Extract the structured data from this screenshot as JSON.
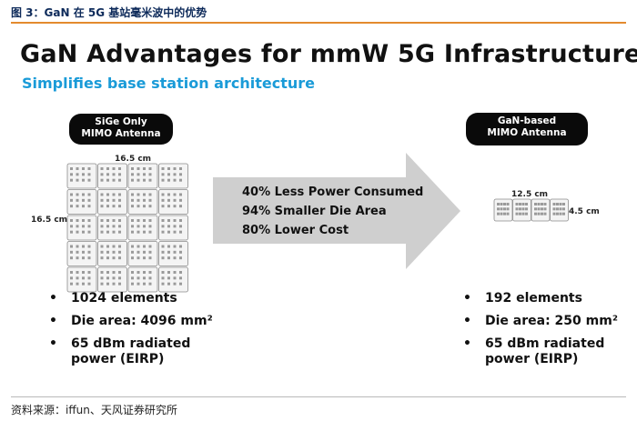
{
  "caption": "图 3：GaN 在 5G 基站毫米波中的优势",
  "title": "GaN Advantages for mmW 5G Infrastructure",
  "subtitle": "Simplifies base station architecture",
  "left": {
    "label_line1": "SiGe Only",
    "label_line2": "MIMO Antenna",
    "width_dim": "16.5 cm",
    "height_dim": "16.5 cm",
    "bullets": [
      "1024 elements",
      "Die area: 4096 mm²",
      "65 dBm radiated power (EIRP)"
    ],
    "bullet_line1": "65 dBm radiated",
    "bullet_line2": "power (EIRP)"
  },
  "arrow": {
    "lines": [
      "40% Less Power Consumed",
      "94% Smaller Die Area",
      "80% Lower Cost"
    ]
  },
  "right": {
    "label_line1": "GaN-based",
    "label_line2": "MIMO Antenna",
    "width_dim": "12.5 cm",
    "height_dim": "4.5 cm",
    "bullets": [
      "192 elements",
      "Die area: 250 mm²"
    ],
    "bullet_line1": "65 dBm radiated",
    "bullet_line2": "power (EIRP)"
  },
  "source": "资料来源：iffun、天风证券研究所",
  "colors": {
    "accent_orange": "#e38a2e",
    "subtitle_blue": "#1a9bd8",
    "arrow_gray": "#cfcfcf",
    "pill_black": "#0a0a0a"
  }
}
